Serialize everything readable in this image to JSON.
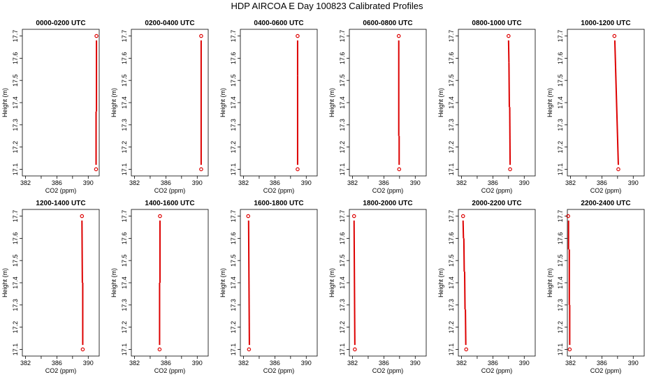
{
  "title": "HDP AIRCOA E  Day 100823  Calibrated Profiles",
  "colors": {
    "line": "#dd0000",
    "marker": "#dd0000",
    "axis": "#000000"
  },
  "chart_data": [
    {
      "type": "line",
      "title": "0000-0200 UTC",
      "xlabel": "CO2 (ppm)",
      "ylabel": "Height (m)",
      "xlim": [
        381.6,
        391.4
      ],
      "ylim": [
        17.07,
        17.73
      ],
      "xticks": [
        "382",
        "386",
        "390"
      ],
      "xtick_values": [
        382,
        384,
        386,
        388,
        390
      ],
      "yticks": [
        "17.1",
        "17.2",
        "17.3",
        "17.4",
        "17.5",
        "17.6",
        "17.7"
      ],
      "ytick_values": [
        17.1,
        17.2,
        17.3,
        17.4,
        17.5,
        17.6,
        17.7
      ],
      "points": [
        [
          391.0,
          17.1
        ],
        [
          391.05,
          17.7
        ]
      ],
      "segments": [
        [
          391.0,
          17.12,
          391.0,
          17.36
        ],
        [
          391.05,
          17.36,
          391.05,
          17.68
        ]
      ]
    },
    {
      "type": "line",
      "title": "0200-0400 UTC",
      "xlabel": "CO2 (ppm)",
      "ylabel": "Height (m)",
      "xlim": [
        381.6,
        391.4
      ],
      "ylim": [
        17.07,
        17.73
      ],
      "xticks": [
        "382",
        "386",
        "390"
      ],
      "xtick_values": [
        382,
        384,
        386,
        388,
        390
      ],
      "yticks": [
        "17.1",
        "17.2",
        "17.3",
        "17.4",
        "17.5",
        "17.6",
        "17.7"
      ],
      "ytick_values": [
        17.1,
        17.2,
        17.3,
        17.4,
        17.5,
        17.6,
        17.7
      ],
      "points": [
        [
          390.5,
          17.1
        ],
        [
          390.5,
          17.7
        ]
      ],
      "segments": [
        [
          390.5,
          17.12,
          390.5,
          17.68
        ]
      ]
    },
    {
      "type": "line",
      "title": "0400-0600 UTC",
      "xlabel": "CO2 (ppm)",
      "ylabel": "Height (m)",
      "xlim": [
        381.6,
        391.4
      ],
      "ylim": [
        17.07,
        17.73
      ],
      "xticks": [
        "382",
        "386",
        "390"
      ],
      "xtick_values": [
        382,
        384,
        386,
        388,
        390
      ],
      "yticks": [
        "17.1",
        "17.2",
        "17.3",
        "17.4",
        "17.5",
        "17.6",
        "17.7"
      ],
      "ytick_values": [
        17.1,
        17.2,
        17.3,
        17.4,
        17.5,
        17.6,
        17.7
      ],
      "points": [
        [
          388.9,
          17.1
        ],
        [
          388.9,
          17.7
        ]
      ],
      "segments": [
        [
          388.9,
          17.12,
          388.9,
          17.52
        ],
        [
          388.9,
          17.52,
          388.9,
          17.68
        ]
      ]
    },
    {
      "type": "line",
      "title": "0600-0800 UTC",
      "xlabel": "CO2 (ppm)",
      "ylabel": "Height (m)",
      "xlim": [
        381.6,
        391.4
      ],
      "ylim": [
        17.07,
        17.73
      ],
      "xticks": [
        "382",
        "386",
        "390"
      ],
      "xtick_values": [
        382,
        384,
        386,
        388,
        390
      ],
      "yticks": [
        "17.1",
        "17.2",
        "17.3",
        "17.4",
        "17.5",
        "17.6",
        "17.7"
      ],
      "ytick_values": [
        17.1,
        17.2,
        17.3,
        17.4,
        17.5,
        17.6,
        17.7
      ],
      "points": [
        [
          387.95,
          17.1
        ],
        [
          387.9,
          17.7
        ]
      ],
      "segments": [
        [
          387.95,
          17.12,
          387.95,
          17.25
        ],
        [
          387.9,
          17.25,
          387.9,
          17.68
        ]
      ]
    },
    {
      "type": "line",
      "title": "0800-1000 UTC",
      "xlabel": "CO2 (ppm)",
      "ylabel": "Height (m)",
      "xlim": [
        381.6,
        391.4
      ],
      "ylim": [
        17.07,
        17.73
      ],
      "xticks": [
        "382",
        "386",
        "390"
      ],
      "xtick_values": [
        382,
        384,
        386,
        388,
        390
      ],
      "yticks": [
        "17.1",
        "17.2",
        "17.3",
        "17.4",
        "17.5",
        "17.6",
        "17.7"
      ],
      "ytick_values": [
        17.1,
        17.2,
        17.3,
        17.4,
        17.5,
        17.6,
        17.7
      ],
      "points": [
        [
          388.2,
          17.1
        ],
        [
          388.0,
          17.7
        ]
      ],
      "segments": [
        [
          388.2,
          17.12,
          388.15,
          17.38
        ],
        [
          388.1,
          17.38,
          388.05,
          17.58
        ],
        [
          388.05,
          17.58,
          388.0,
          17.68
        ]
      ]
    },
    {
      "type": "line",
      "title": "1000-1200 UTC",
      "xlabel": "CO2 (ppm)",
      "ylabel": "Height (m)",
      "xlim": [
        381.6,
        391.4
      ],
      "ylim": [
        17.07,
        17.73
      ],
      "xticks": [
        "382",
        "386",
        "390"
      ],
      "xtick_values": [
        382,
        384,
        386,
        388,
        390
      ],
      "yticks": [
        "17.1",
        "17.2",
        "17.3",
        "17.4",
        "17.5",
        "17.6",
        "17.7"
      ],
      "ytick_values": [
        17.1,
        17.2,
        17.3,
        17.4,
        17.5,
        17.6,
        17.7
      ],
      "points": [
        [
          388.1,
          17.1
        ],
        [
          387.6,
          17.7
        ]
      ],
      "segments": [
        [
          388.1,
          17.12,
          387.65,
          17.68
        ]
      ]
    },
    {
      "type": "line",
      "title": "1200-1400 UTC",
      "xlabel": "CO2 (ppm)",
      "ylabel": "Height (m)",
      "xlim": [
        381.6,
        391.4
      ],
      "ylim": [
        17.07,
        17.73
      ],
      "xticks": [
        "382",
        "386",
        "390"
      ],
      "xtick_values": [
        382,
        384,
        386,
        388,
        390
      ],
      "yticks": [
        "17.1",
        "17.2",
        "17.3",
        "17.4",
        "17.5",
        "17.6",
        "17.7"
      ],
      "ytick_values": [
        17.1,
        17.2,
        17.3,
        17.4,
        17.5,
        17.6,
        17.7
      ],
      "points": [
        [
          389.3,
          17.1
        ],
        [
          389.2,
          17.7
        ]
      ],
      "segments": [
        [
          389.3,
          17.12,
          389.3,
          17.4
        ],
        [
          389.25,
          17.4,
          389.2,
          17.68
        ]
      ]
    },
    {
      "type": "line",
      "title": "1400-1600 UTC",
      "xlabel": "CO2 (ppm)",
      "ylabel": "Height (m)",
      "xlim": [
        381.6,
        391.4
      ],
      "ylim": [
        17.07,
        17.73
      ],
      "xticks": [
        "382",
        "386",
        "390"
      ],
      "xtick_values": [
        382,
        384,
        386,
        388,
        390
      ],
      "yticks": [
        "17.1",
        "17.2",
        "17.3",
        "17.4",
        "17.5",
        "17.6",
        "17.7"
      ],
      "ytick_values": [
        17.1,
        17.2,
        17.3,
        17.4,
        17.5,
        17.6,
        17.7
      ],
      "points": [
        [
          385.2,
          17.1
        ],
        [
          385.25,
          17.7
        ]
      ],
      "segments": [
        [
          385.2,
          17.12,
          385.2,
          17.4
        ],
        [
          385.25,
          17.4,
          385.25,
          17.68
        ]
      ]
    },
    {
      "type": "line",
      "title": "1600-1800 UTC",
      "xlabel": "CO2 (ppm)",
      "ylabel": "Height (m)",
      "xlim": [
        381.6,
        391.4
      ],
      "ylim": [
        17.07,
        17.73
      ],
      "xticks": [
        "382",
        "386",
        "390"
      ],
      "xtick_values": [
        382,
        384,
        386,
        388,
        390
      ],
      "yticks": [
        "17.1",
        "17.2",
        "17.3",
        "17.4",
        "17.5",
        "17.6",
        "17.7"
      ],
      "ytick_values": [
        17.1,
        17.2,
        17.3,
        17.4,
        17.5,
        17.6,
        17.7
      ],
      "points": [
        [
          382.7,
          17.1
        ],
        [
          382.6,
          17.7
        ]
      ],
      "segments": [
        [
          382.75,
          17.12,
          382.7,
          17.4
        ],
        [
          382.7,
          17.4,
          382.65,
          17.68
        ]
      ]
    },
    {
      "type": "line",
      "title": "1800-2000 UTC",
      "xlabel": "CO2 (ppm)",
      "ylabel": "Height (m)",
      "xlim": [
        381.6,
        391.4
      ],
      "ylim": [
        17.07,
        17.73
      ],
      "xticks": [
        "382",
        "386",
        "390"
      ],
      "xtick_values": [
        382,
        384,
        386,
        388,
        390
      ],
      "yticks": [
        "17.1",
        "17.2",
        "17.3",
        "17.4",
        "17.5",
        "17.6",
        "17.7"
      ],
      "ytick_values": [
        17.1,
        17.2,
        17.3,
        17.4,
        17.5,
        17.6,
        17.7
      ],
      "points": [
        [
          382.3,
          17.1
        ],
        [
          382.2,
          17.7
        ]
      ],
      "segments": [
        [
          382.3,
          17.12,
          382.25,
          17.4
        ],
        [
          382.25,
          17.4,
          382.2,
          17.68
        ]
      ]
    },
    {
      "type": "line",
      "title": "2000-2200 UTC",
      "xlabel": "CO2 (ppm)",
      "ylabel": "Height (m)",
      "xlim": [
        381.6,
        391.4
      ],
      "ylim": [
        17.07,
        17.73
      ],
      "xticks": [
        "382",
        "386",
        "390"
      ],
      "xtick_values": [
        382,
        384,
        386,
        388,
        390
      ],
      "yticks": [
        "17.1",
        "17.2",
        "17.3",
        "17.4",
        "17.5",
        "17.6",
        "17.7"
      ],
      "ytick_values": [
        17.1,
        17.2,
        17.3,
        17.4,
        17.5,
        17.6,
        17.7
      ],
      "points": [
        [
          382.6,
          17.1
        ],
        [
          382.2,
          17.7
        ]
      ],
      "segments": [
        [
          382.55,
          17.12,
          382.5,
          17.28
        ],
        [
          382.45,
          17.28,
          382.4,
          17.45
        ],
        [
          382.35,
          17.45,
          382.3,
          17.6
        ],
        [
          382.25,
          17.6,
          382.2,
          17.68
        ]
      ]
    },
    {
      "type": "line",
      "title": "2200-2400 UTC",
      "xlabel": "CO2 (ppm)",
      "ylabel": "Height (m)",
      "xlim": [
        381.6,
        391.4
      ],
      "ylim": [
        17.07,
        17.73
      ],
      "xticks": [
        "382",
        "386",
        "390"
      ],
      "xtick_values": [
        382,
        384,
        386,
        388,
        390
      ],
      "yticks": [
        "17.1",
        "17.2",
        "17.3",
        "17.4",
        "17.5",
        "17.6",
        "17.7"
      ],
      "ytick_values": [
        17.1,
        17.2,
        17.3,
        17.4,
        17.5,
        17.6,
        17.7
      ],
      "points": [
        [
          381.9,
          17.1
        ],
        [
          381.7,
          17.7
        ]
      ],
      "segments": [
        [
          381.9,
          17.12,
          381.9,
          17.3
        ],
        [
          381.85,
          17.3,
          381.85,
          17.55
        ],
        [
          381.75,
          17.55,
          381.75,
          17.68
        ]
      ]
    }
  ]
}
